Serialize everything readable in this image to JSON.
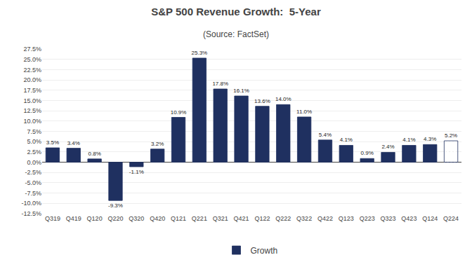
{
  "chart_data": {
    "type": "bar",
    "title": "S&P 500 Revenue Growth:  5-Year",
    "subtitle": "(Source: FactSet)",
    "categories": [
      "Q319",
      "Q419",
      "Q120",
      "Q220",
      "Q320",
      "Q420",
      "Q121",
      "Q221",
      "Q321",
      "Q421",
      "Q122",
      "Q222",
      "Q322",
      "Q422",
      "Q123",
      "Q223",
      "Q323",
      "Q423",
      "Q124",
      "Q224"
    ],
    "series": [
      {
        "name": "Growth",
        "color": "#1F3060",
        "values": [
          3.5,
          3.4,
          0.8,
          -9.3,
          -1.1,
          3.2,
          10.9,
          25.3,
          17.8,
          16.1,
          13.6,
          14.0,
          11.0,
          5.4,
          4.1,
          0.9,
          2.4,
          4.1,
          4.3,
          5.2
        ],
        "value_labels": [
          "3.5%",
          "3.4%",
          "0.8%",
          "-9.3%",
          "-1.1%",
          "3.2%",
          "10.9%",
          "25.3%",
          "17.8%",
          "16.1%",
          "13.6%",
          "14.0%",
          "11.0%",
          "5.4%",
          "4.1%",
          "0.9%",
          "2.4%",
          "4.1%",
          "4.3%",
          "5.2%"
        ]
      }
    ],
    "ylim": [
      -12.5,
      27.5
    ],
    "yticks": [
      {
        "value": -12.5,
        "label": "-12.5%"
      },
      {
        "value": -10.0,
        "label": "-10.0%"
      },
      {
        "value": -7.5,
        "label": "-7.5%"
      },
      {
        "value": -5.0,
        "label": "-5.0%"
      },
      {
        "value": -2.5,
        "label": "-2.5%"
      },
      {
        "value": 0.0,
        "label": "0.0%"
      },
      {
        "value": 2.5,
        "label": "2.5%"
      },
      {
        "value": 5.0,
        "label": "5.0%"
      },
      {
        "value": 7.5,
        "label": "7.5%"
      },
      {
        "value": 10.0,
        "label": "10.0%"
      },
      {
        "value": 12.5,
        "label": "12.5%"
      },
      {
        "value": 15.0,
        "label": "15.0%"
      },
      {
        "value": 17.5,
        "label": "17.5%"
      },
      {
        "value": 20.0,
        "label": "20.0%"
      },
      {
        "value": 22.5,
        "label": "22.5%"
      },
      {
        "value": 25.0,
        "label": "25.0%"
      },
      {
        "value": 27.5,
        "label": "27.5%"
      }
    ],
    "grid": true,
    "data_labels": true,
    "legend": "bottom"
  }
}
